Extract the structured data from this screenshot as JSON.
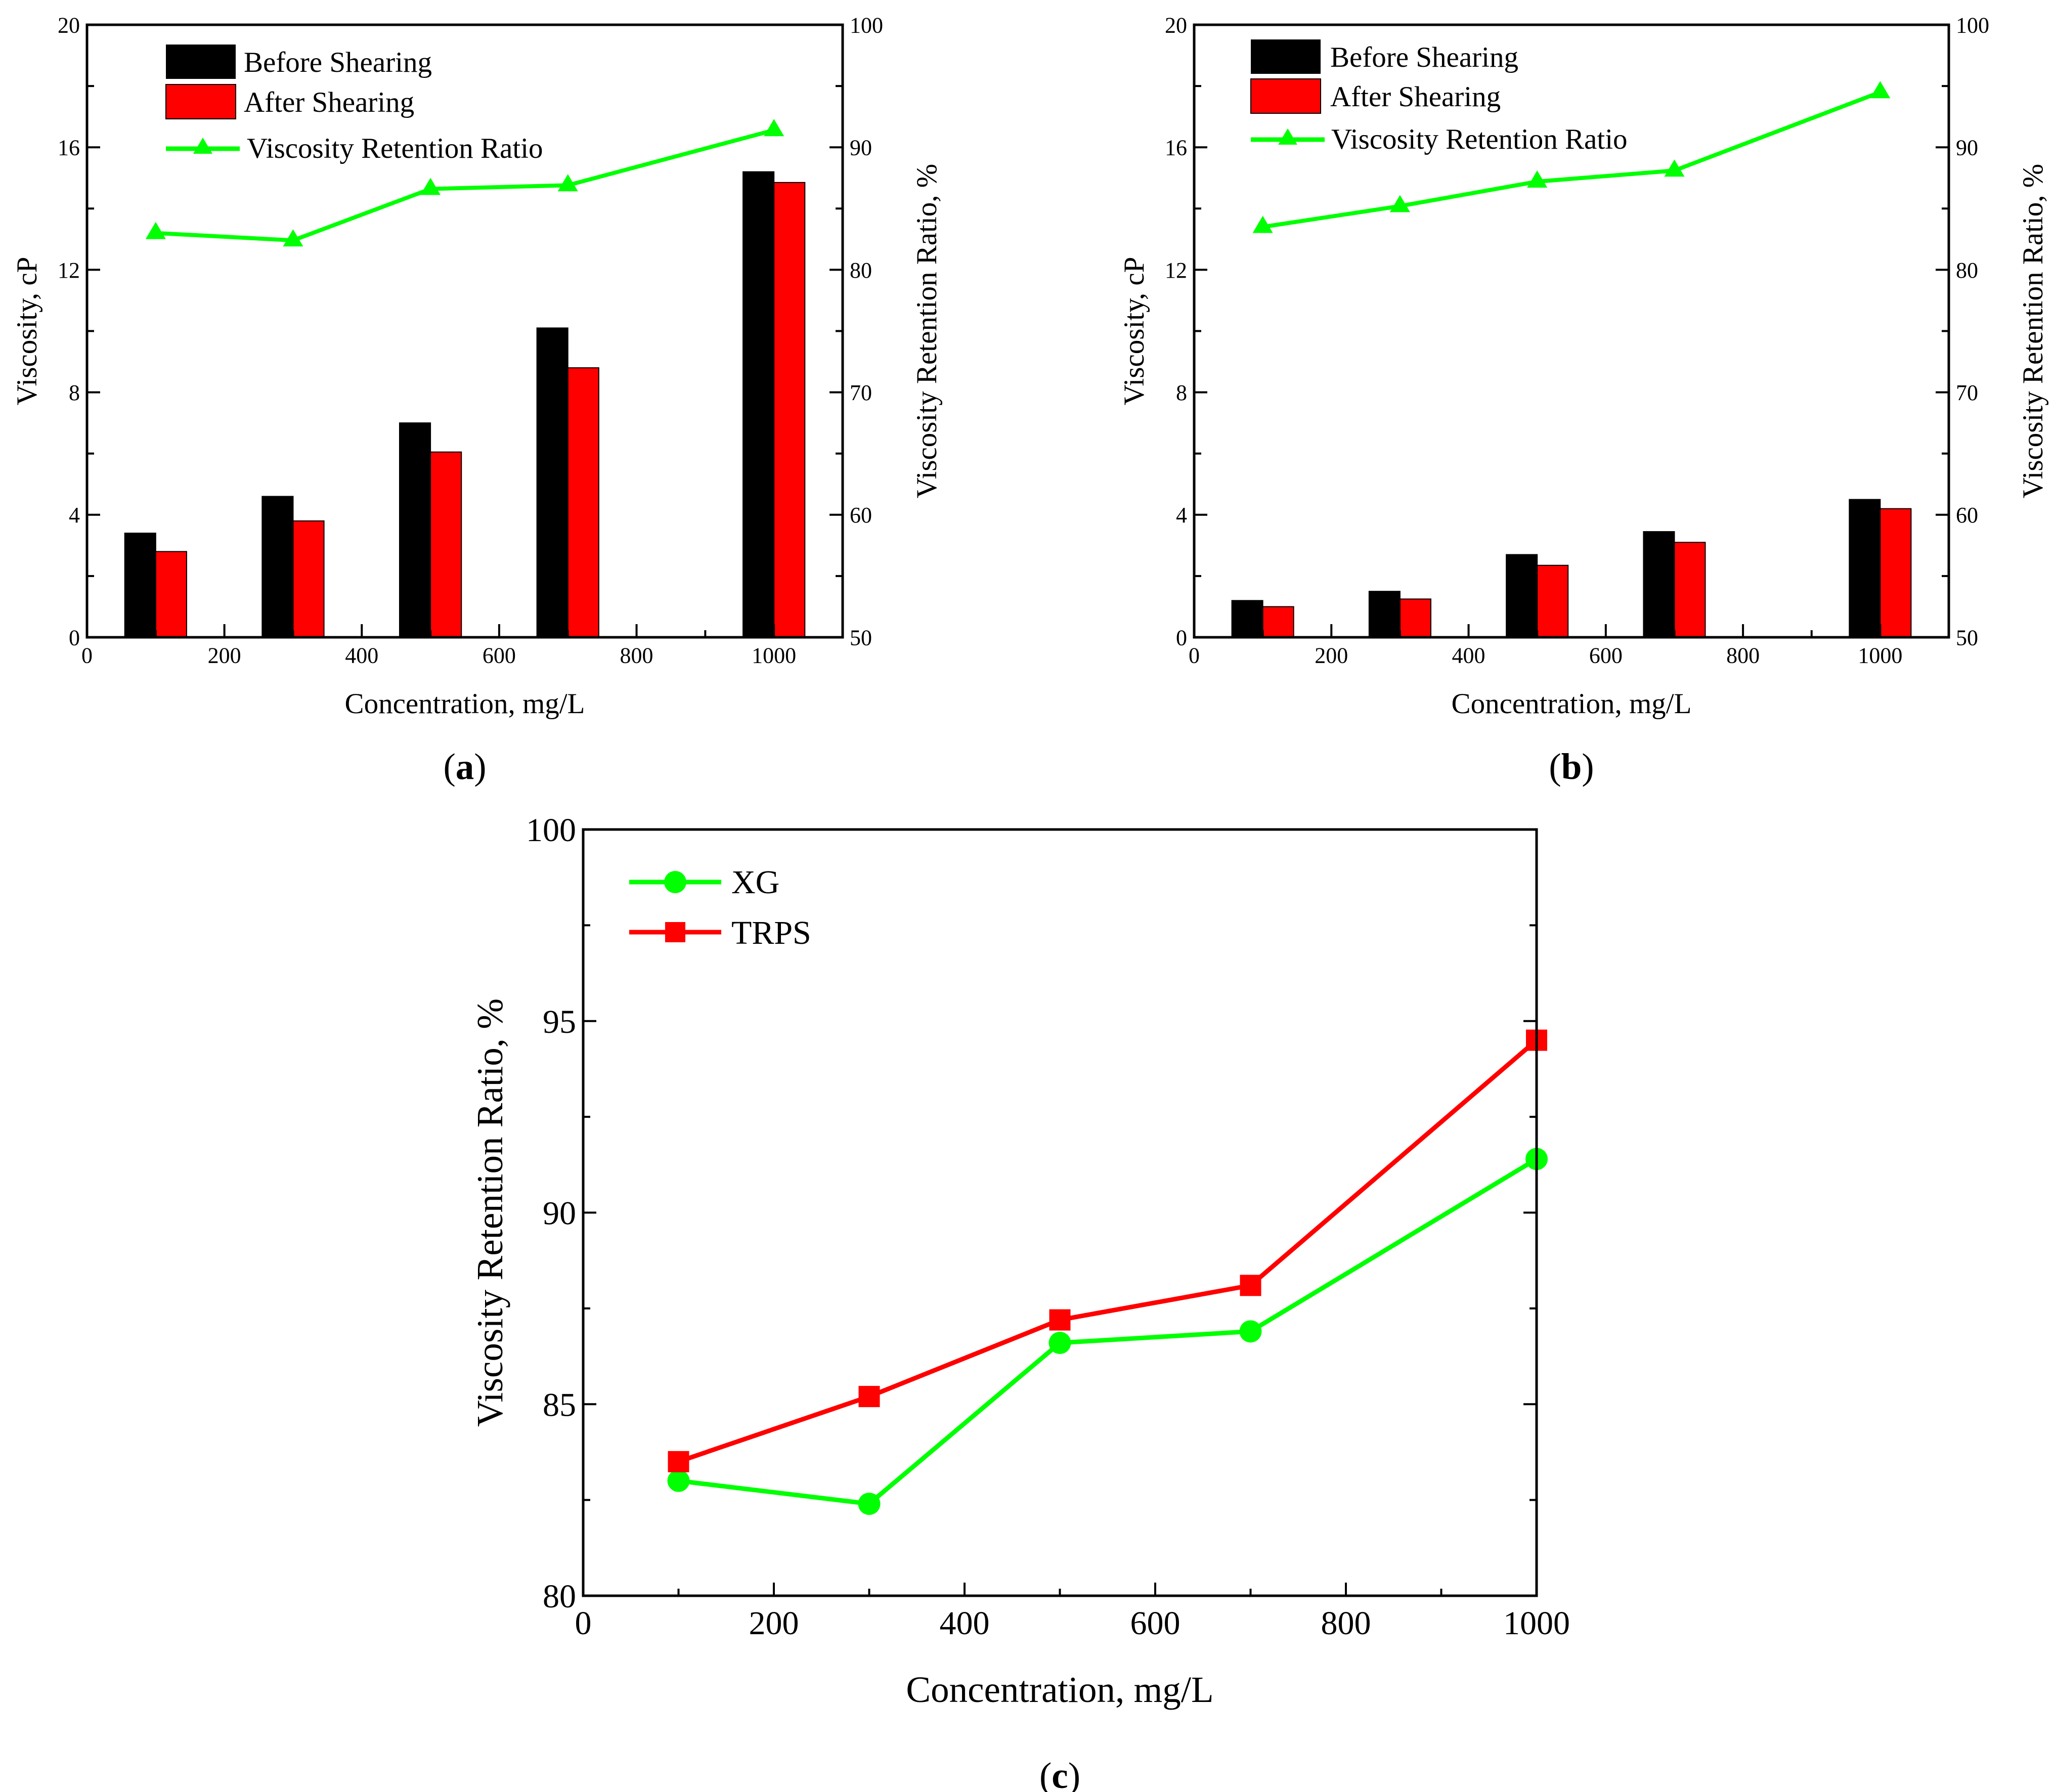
{
  "colors": {
    "before": "#000000",
    "after": "#ff0000",
    "ratio": "#00ff00",
    "xg": "#00ff00",
    "trps": "#ff0000"
  },
  "chart_data": [
    {
      "id": "a",
      "panel_label": "a",
      "type": "bar",
      "xlabel": "Concentration, mg/L",
      "ylabel": "Viscosity, cP",
      "y2label": "Viscosity Retention Ratio, %",
      "xlim": [
        0,
        1100
      ],
      "xticks": [
        0,
        200,
        400,
        600,
        800,
        1000
      ],
      "ylim": [
        0,
        20
      ],
      "yticks": [
        0,
        4,
        8,
        12,
        16,
        20
      ],
      "y2lim": [
        50,
        100
      ],
      "y2ticks": [
        50,
        60,
        70,
        80,
        90,
        100
      ],
      "x": [
        100,
        300,
        500,
        700,
        1000
      ],
      "series": [
        {
          "name": "Before Shearing",
          "kind": "bar",
          "axis": "left",
          "values": [
            3.4,
            4.6,
            7.0,
            10.1,
            15.2
          ]
        },
        {
          "name": "After Shearing",
          "kind": "bar",
          "axis": "left",
          "values": [
            2.8,
            3.8,
            6.05,
            8.8,
            14.85
          ]
        },
        {
          "name": "Viscosity Retention Ratio",
          "kind": "line",
          "marker": "triangle",
          "axis": "right",
          "values": [
            83.0,
            82.4,
            86.6,
            86.9,
            91.4
          ]
        }
      ]
    },
    {
      "id": "b",
      "panel_label": "b",
      "type": "bar",
      "xlabel": "Concentration, mg/L",
      "ylabel": "Viscosity, cP",
      "y2label": "Viscosity Retention Ratio, %",
      "xlim": [
        0,
        1100
      ],
      "xticks": [
        0,
        200,
        400,
        600,
        800,
        1000
      ],
      "ylim": [
        0,
        20
      ],
      "yticks": [
        0,
        4,
        8,
        12,
        16,
        20
      ],
      "y2lim": [
        50,
        100
      ],
      "y2ticks": [
        50,
        60,
        70,
        80,
        90,
        100
      ],
      "x": [
        100,
        300,
        500,
        700,
        1000
      ],
      "series": [
        {
          "name": "Before Shearing",
          "kind": "bar",
          "axis": "left",
          "values": [
            1.2,
            1.5,
            2.7,
            3.45,
            4.5
          ]
        },
        {
          "name": "After Shearing",
          "kind": "bar",
          "axis": "left",
          "values": [
            1.0,
            1.25,
            2.35,
            3.1,
            4.2
          ]
        },
        {
          "name": "Viscosity Retention Ratio",
          "kind": "line",
          "marker": "triangle",
          "axis": "right",
          "values": [
            83.5,
            85.2,
            87.2,
            88.1,
            94.5
          ]
        }
      ]
    },
    {
      "id": "c",
      "panel_label": "c",
      "type": "line",
      "xlabel": "Concentration, mg/L",
      "ylabel": "Viscosity Retention Ratio, %",
      "xlim": [
        0,
        1000
      ],
      "xticks": [
        0,
        200,
        400,
        600,
        800,
        1000
      ],
      "ylim": [
        80,
        100
      ],
      "yticks": [
        80,
        85,
        90,
        95,
        100
      ],
      "x": [
        100,
        300,
        500,
        700,
        1000
      ],
      "series": [
        {
          "name": "XG",
          "marker": "circle",
          "values": [
            83.0,
            82.4,
            86.6,
            86.9,
            91.4
          ]
        },
        {
          "name": "TRPS",
          "marker": "square",
          "values": [
            83.5,
            85.2,
            87.2,
            88.1,
            94.5
          ]
        }
      ]
    }
  ]
}
